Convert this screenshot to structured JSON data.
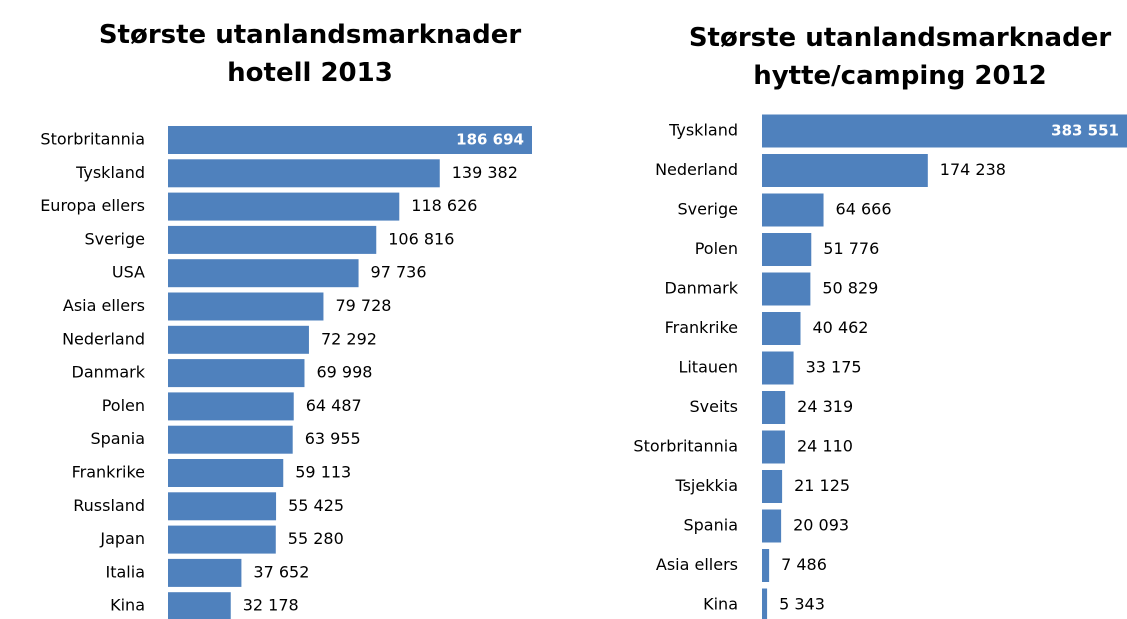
{
  "chart_data": [
    {
      "type": "barh",
      "title": "Største utanlandsmarknader hotell 2013",
      "color": "#4f81bd",
      "categories": [
        "Storbritannia",
        "Tyskland",
        "Europa ellers",
        "Sverige",
        "USA",
        "Asia ellers",
        "Nederland",
        "Danmark",
        "Polen",
        "Spania",
        "Frankrike",
        "Russland",
        "Japan",
        "Italia",
        "Kina"
      ],
      "values": [
        186694,
        139382,
        118626,
        106816,
        97736,
        79728,
        72292,
        69998,
        64487,
        63955,
        59113,
        55425,
        55280,
        37652,
        32178
      ],
      "value_labels": [
        "186 694",
        "139 382",
        "118 626",
        "106 816",
        "97 736",
        "79 728",
        "72 292",
        "69 998",
        "64 487",
        "63 955",
        "59 113",
        "55 425",
        "55 280",
        "37 652",
        "32 178"
      ]
    },
    {
      "type": "barh",
      "title": "Største utanlandsmarknader hytte/camping 2012",
      "color": "#4f81bd",
      "categories": [
        "Tyskland",
        "Nederland",
        "Sverige",
        "Polen",
        "Danmark",
        "Frankrike",
        "Litauen",
        "Sveits",
        "Storbritannia",
        "Tsjekkia",
        "Spania",
        "Asia ellers",
        "Kina"
      ],
      "values": [
        383551,
        174238,
        64666,
        51776,
        50829,
        40462,
        33175,
        24319,
        24110,
        21125,
        20093,
        7486,
        5343
      ],
      "value_labels": [
        "383 551",
        "174 238",
        "64 666",
        "51 776",
        "50 829",
        "40 462",
        "33 175",
        "24 319",
        "24 110",
        "21 125",
        "20 093",
        "7 486",
        "5 343"
      ]
    }
  ]
}
